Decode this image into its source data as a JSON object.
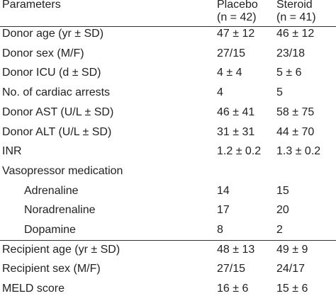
{
  "table": {
    "header": [
      "Parameters",
      [
        "Placebo",
        "(n = 42)"
      ],
      [
        "Steroid",
        "(n = 41)"
      ]
    ],
    "sections": [
      {
        "rows": [
          [
            "Donor age (yr ± SD)",
            "47 ± 12",
            "46 ± 12"
          ],
          [
            "Donor sex (M/F)",
            "27/15",
            "23/18"
          ],
          [
            "Donor ICU (d ± SD)",
            "4 ± 4",
            "5 ± 6"
          ],
          [
            "No. of cardiac arrests",
            "4",
            "5"
          ],
          [
            "Donor AST (U/L ± SD)",
            "46 ± 41",
            "58 ± 75"
          ],
          [
            "Donor ALT (U/L ± SD)",
            "31 ± 31",
            "44 ± 70"
          ],
          [
            "INR",
            "1.2 ± 0.2",
            "1.3 ± 0.2"
          ],
          {
            "label": "Vasopressor medication",
            "items": [
              [
                "Adrenaline",
                "14",
                "15"
              ],
              [
                "Noradrenaline",
                "17",
                "20"
              ],
              [
                "Dopamine",
                "8",
                "2"
              ]
            ]
          }
        ]
      },
      {
        "rows": [
          [
            "Recipient age (yr ± SD)",
            "48 ± 13",
            "49 ± 9"
          ],
          [
            "Recipient sex (M/F)",
            "27/15",
            "24/17"
          ],
          [
            "MELD score",
            "16 ± 6",
            "15 ± 6"
          ]
        ]
      }
    ]
  }
}
